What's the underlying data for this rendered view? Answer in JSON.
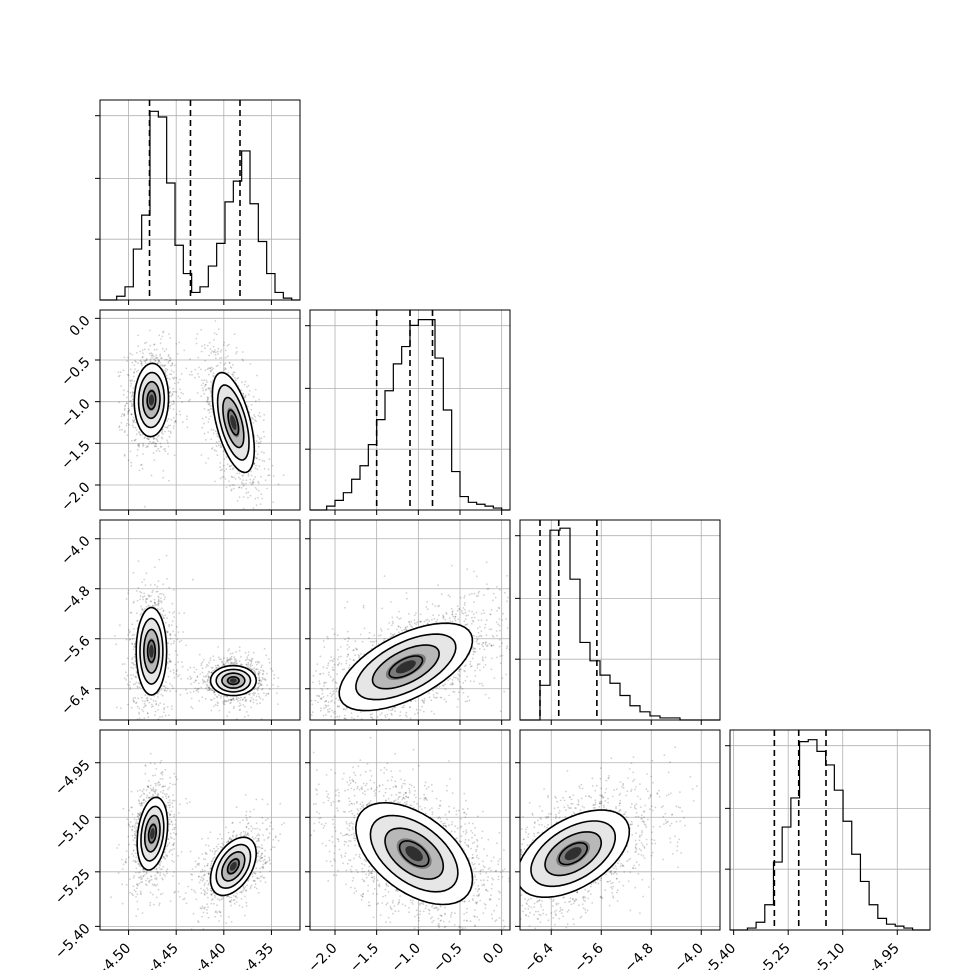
{
  "chart_data": {
    "type": "corner",
    "parameters": 4,
    "axes": [
      {
        "id": 0,
        "range": [
          -4.53,
          -4.32
        ],
        "ticks": [
          -4.5,
          -4.45,
          -4.4,
          -4.35
        ],
        "tick_labels": [
          "−4.50",
          "−4.45",
          "−4.40",
          "−4.35"
        ]
      },
      {
        "id": 1,
        "range": [
          -2.3,
          0.1
        ],
        "ticks": [
          -2.0,
          -1.5,
          -1.0,
          -0.5,
          0.0
        ],
        "tick_labels": [
          "−2.0",
          "−1.5",
          "−1.0",
          "−0.5",
          "0.0"
        ]
      },
      {
        "id": 2,
        "range": [
          -6.9,
          -3.7
        ],
        "ticks": [
          -6.4,
          -5.6,
          -4.8,
          -4.0
        ],
        "tick_labels": [
          "−6.4",
          "−5.6",
          "−4.8",
          "−4.0"
        ]
      },
      {
        "id": 3,
        "range": [
          -5.41,
          -4.86
        ],
        "ticks": [
          -5.4,
          -5.25,
          -5.1,
          -4.95
        ],
        "tick_labels": [
          "−5.40",
          "−5.25",
          "−5.10",
          "−4.95"
        ]
      }
    ],
    "diagonal": [
      {
        "type": "histogram",
        "param": 0,
        "quantiles": [
          -4.478,
          -4.435,
          -4.383
        ],
        "counts": [
          0,
          0,
          2,
          7,
          27,
          45,
          100,
          97,
          62,
          29,
          14,
          4,
          7,
          18,
          30,
          52,
          63,
          79,
          51,
          31,
          14,
          4,
          1,
          0
        ],
        "ylim": [
          0,
          106
        ]
      },
      {
        "type": "histogram",
        "param": 1,
        "quantiles": [
          -1.5,
          -1.1,
          -0.83
        ],
        "counts": [
          0,
          0,
          2,
          5,
          9,
          16,
          23,
          34,
          47,
          62,
          76,
          85,
          96,
          99,
          99,
          79,
          52,
          20,
          7,
          4,
          3,
          2,
          1,
          0
        ],
        "ylim": [
          0,
          104
        ]
      },
      {
        "type": "histogram",
        "param": 2,
        "quantiles": [
          -6.58,
          -6.28,
          -5.67
        ],
        "counts": [
          0,
          0,
          17,
          93,
          94,
          69,
          38,
          29,
          22,
          18,
          12,
          7,
          4,
          2,
          1,
          1,
          0,
          0,
          0,
          0
        ],
        "ylim": [
          0,
          98
        ]
      },
      {
        "type": "histogram",
        "param": 3,
        "quantiles": [
          -5.288,
          -5.221,
          -5.146
        ],
        "counts": [
          0,
          0,
          1,
          4,
          13,
          35,
          53,
          68,
          97,
          98,
          92,
          85,
          72,
          56,
          39,
          25,
          13,
          6,
          3,
          2,
          1,
          0,
          0
        ],
        "ylim": [
          0,
          103
        ]
      }
    ],
    "scatter_panels": [
      {
        "x_param": 0,
        "y_param": 1,
        "modes": [
          {
            "x": -4.476,
            "y": -0.98,
            "sx": 0.009,
            "sy": 0.22,
            "rho": 0.05,
            "w": 0.5
          },
          {
            "x": -4.39,
            "y": -1.25,
            "sx": 0.011,
            "sy": 0.3,
            "rho": -0.55,
            "w": 0.5
          }
        ]
      },
      {
        "x_param": 0,
        "y_param": 2,
        "modes": [
          {
            "x": -4.476,
            "y": -5.8,
            "sx": 0.008,
            "sy": 0.35,
            "rho": 0.0,
            "w": 0.5
          },
          {
            "x": -4.39,
            "y": -6.27,
            "sx": 0.012,
            "sy": 0.12,
            "rho": 0.0,
            "w": 0.5
          }
        ]
      },
      {
        "x_param": 0,
        "y_param": 3,
        "modes": [
          {
            "x": -4.475,
            "y": -5.145,
            "sx": 0.008,
            "sy": 0.05,
            "rho": 0.25,
            "w": 0.5
          },
          {
            "x": -4.39,
            "y": -5.235,
            "sx": 0.012,
            "sy": 0.04,
            "rho": 0.45,
            "w": 0.5
          }
        ]
      },
      {
        "x_param": 1,
        "y_param": 2,
        "modes": [
          {
            "x": -1.15,
            "y": -6.05,
            "sx": 0.4,
            "sy": 0.35,
            "rho": 0.6,
            "w": 1.0
          }
        ]
      },
      {
        "x_param": 1,
        "y_param": 3,
        "modes": [
          {
            "x": -1.05,
            "y": -5.2,
            "sx": 0.35,
            "sy": 0.07,
            "rho": -0.5,
            "w": 1.0
          }
        ]
      },
      {
        "x_param": 2,
        "y_param": 3,
        "modes": [
          {
            "x": -6.05,
            "y": -5.2,
            "sx": 0.45,
            "sy": 0.06,
            "rho": 0.5,
            "w": 1.0
          }
        ]
      }
    ],
    "grid": true,
    "title": "",
    "xlabel": "",
    "ylabel": ""
  }
}
